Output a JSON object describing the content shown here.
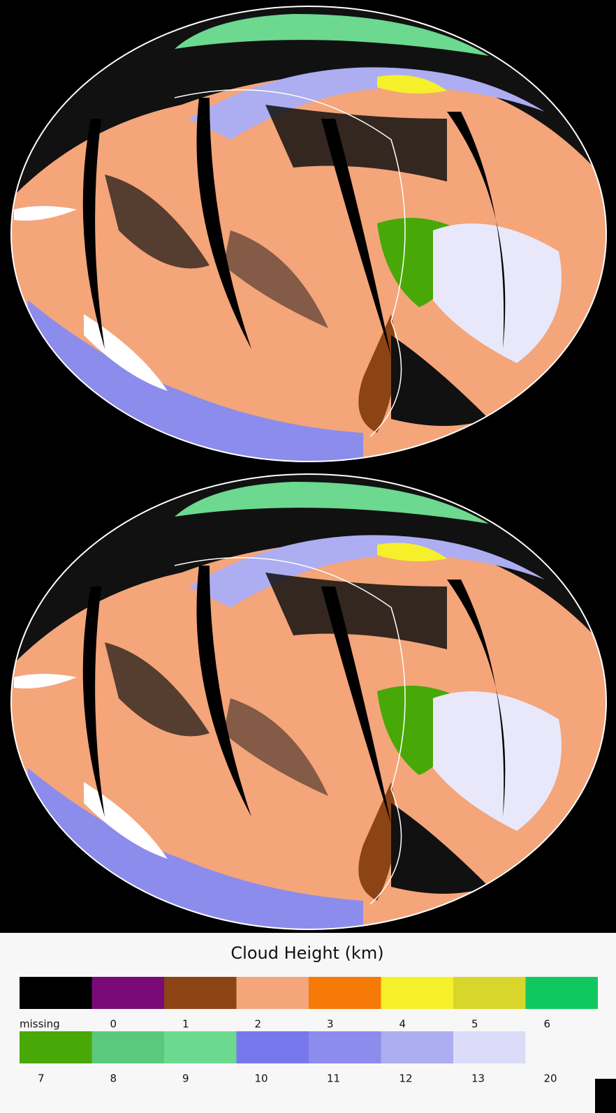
{
  "legend": {
    "title": "Cloud Height (km)",
    "rows": [
      {
        "colors": [
          "#000000",
          "#7a0a78",
          "#8c4414",
          "#f4a57a",
          "#f57a08",
          "#f5f02a",
          "#d8d62a",
          "#10c860"
        ],
        "labels": [
          "missing",
          0,
          1,
          2,
          3,
          4,
          5,
          6
        ]
      },
      {
        "colors": [
          "#48a808",
          "#5cc87c",
          "#6cd890",
          "#7878ee",
          "#8c8cec",
          "#adadf2",
          "#dcdcf8"
        ],
        "labels": [
          7,
          8,
          9,
          10,
          11,
          12,
          13,
          20
        ]
      }
    ]
  }
}
